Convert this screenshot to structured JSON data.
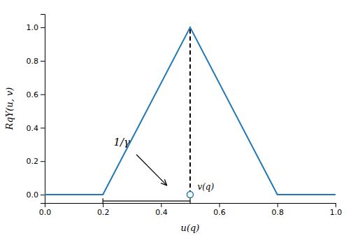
{
  "chart_data": {
    "type": "line",
    "xlabel": "u(q)",
    "ylabel": "RqY(u, v)",
    "xlim": [
      0.0,
      1.0
    ],
    "ylim": [
      -0.05,
      1.08
    ],
    "xticks": [
      {
        "value": 0.0,
        "label": "0.0"
      },
      0.2,
      0.4,
      0.6,
      0.8,
      {
        "value": 1.0,
        "label": "1.0"
      }
    ],
    "yticks": [
      {
        "value": 0.0,
        "label": "0.0"
      },
      0.2,
      0.4,
      0.6,
      0.8,
      {
        "value": 1.0,
        "label": "1.0"
      }
    ],
    "grid": false,
    "series": [
      {
        "x": [
          0.0,
          0.2,
          0.5,
          0.8,
          1.0
        ],
        "values": [
          0.0,
          0.0,
          1.0,
          0.0,
          0.0
        ],
        "color": "#1f77b4",
        "line_style": "solid"
      },
      {
        "x": [
          0.5,
          0.5
        ],
        "values": [
          0.0,
          1.0
        ],
        "color": "black",
        "line_style": "dashed"
      },
      {
        "type": "scatter",
        "x": [
          0.5
        ],
        "values": [
          0.0
        ],
        "color": "#1f77b4",
        "marker": "open-circle"
      }
    ],
    "annotations": [
      {
        "text": "1/γ",
        "x": 0.265,
        "y": 0.31,
        "arrow_from": [
          0.315,
          0.24
        ],
        "arrow_to": [
          0.42,
          0.055
        ]
      },
      {
        "text": "v(q)",
        "x": 0.525,
        "y": 0.045
      },
      {
        "type": "bracket",
        "x": [
          0.2,
          0.5
        ],
        "y": -0.038
      }
    ]
  }
}
